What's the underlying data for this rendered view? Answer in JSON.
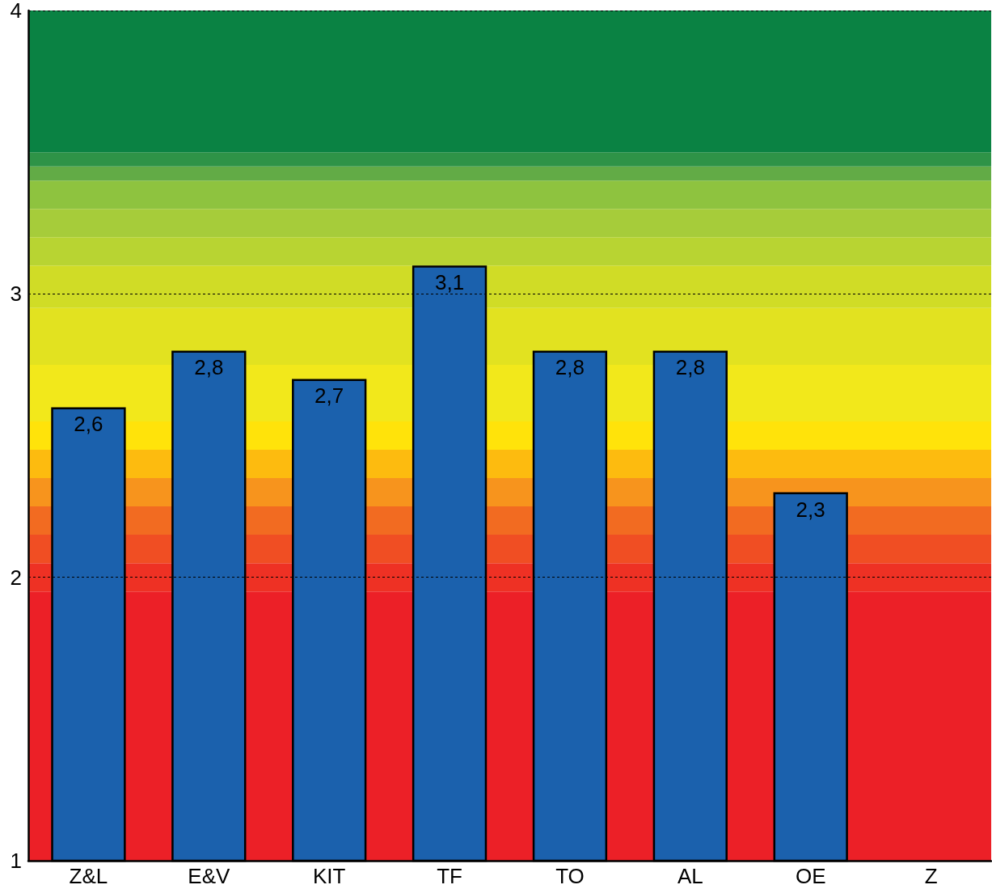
{
  "chart_data": {
    "type": "bar",
    "categories": [
      "Z&L",
      "E&V",
      "KIT",
      "TF",
      "TO",
      "AL",
      "OE",
      "Z"
    ],
    "values": [
      2.6,
      2.8,
      2.7,
      3.1,
      2.8,
      2.8,
      2.3,
      null
    ],
    "value_labels": [
      "2,6",
      "2,8",
      "2,7",
      "3,1",
      "2,8",
      "2,8",
      "2,3",
      null
    ],
    "color": "#1b61ad",
    "ylim": [
      1,
      4
    ],
    "yticks": [
      1,
      2,
      3,
      4
    ],
    "grid": "y",
    "bands": [
      {
        "axis": "y",
        "from": 1,
        "to": 1.95,
        "color": "#ec2027"
      },
      {
        "axis": "y",
        "from": 1.95,
        "to": 2.05,
        "color": "#ee3124"
      },
      {
        "axis": "y",
        "from": 2.05,
        "to": 2.15,
        "color": "#f04e23"
      },
      {
        "axis": "y",
        "from": 2.15,
        "to": 2.25,
        "color": "#f26b21"
      },
      {
        "axis": "y",
        "from": 2.25,
        "to": 2.35,
        "color": "#f7941d"
      },
      {
        "axis": "y",
        "from": 2.35,
        "to": 2.45,
        "color": "#fdbb0f"
      },
      {
        "axis": "y",
        "from": 2.45,
        "to": 2.55,
        "color": "#ffe30a"
      },
      {
        "axis": "y",
        "from": 2.55,
        "to": 2.75,
        "color": "#f2e81b"
      },
      {
        "axis": "y",
        "from": 2.75,
        "to": 2.95,
        "color": "#e2e220"
      },
      {
        "axis": "y",
        "from": 2.95,
        "to": 3.1,
        "color": "#d0dc26"
      },
      {
        "axis": "y",
        "from": 3.1,
        "to": 3.2,
        "color": "#b8d432"
      },
      {
        "axis": "y",
        "from": 3.2,
        "to": 3.3,
        "color": "#a6cc3a"
      },
      {
        "axis": "y",
        "from": 3.3,
        "to": 3.4,
        "color": "#8ec33f"
      },
      {
        "axis": "y",
        "from": 3.4,
        "to": 3.45,
        "color": "#62ab46"
      },
      {
        "axis": "y",
        "from": 3.45,
        "to": 3.5,
        "color": "#2e9347"
      },
      {
        "axis": "y",
        "from": 3.5,
        "to": 4,
        "color": "#0a8243"
      }
    ]
  }
}
